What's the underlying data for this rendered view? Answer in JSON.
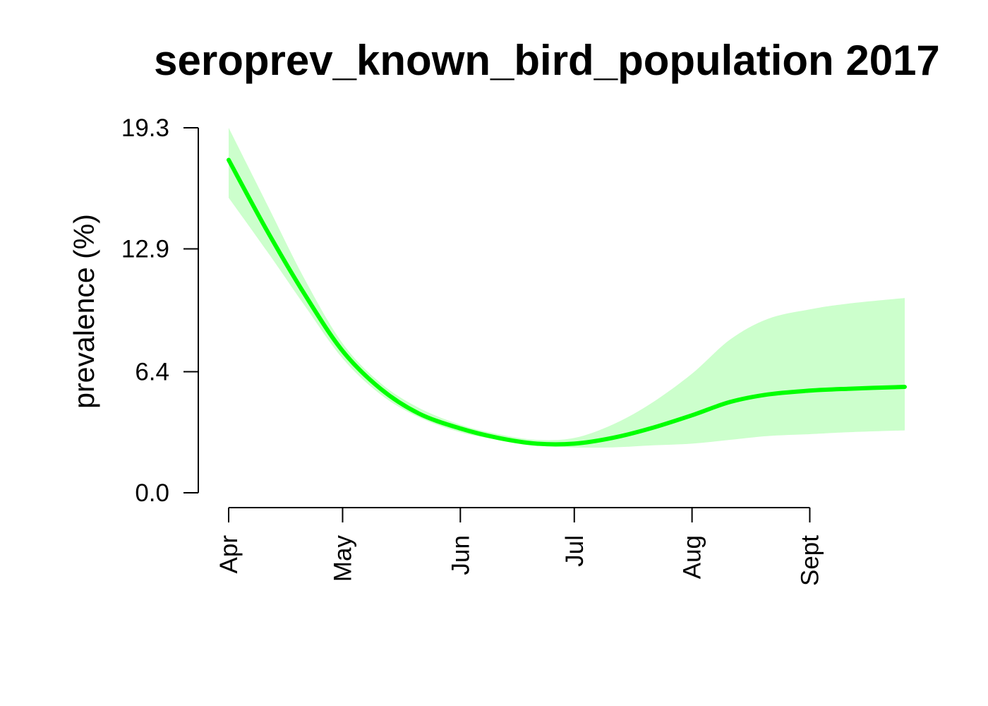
{
  "chart_data": {
    "type": "line",
    "title": "seroprev_known_bird_population 2017",
    "xlabel": "",
    "ylabel": "prevalence (%)",
    "ylim": [
      0.0,
      19.3
    ],
    "yticks": [
      "0.0",
      "6.4",
      "12.9",
      "19.3"
    ],
    "xticks": [
      "Apr",
      "May",
      "Jun",
      "Jul",
      "Aug",
      "Sept"
    ],
    "xtick_dates": [
      "2017-04-01",
      "2017-05-01",
      "2017-06-01",
      "2017-07-01",
      "2017-08-01",
      "2017-09-01"
    ],
    "xlim": [
      "2017-04-01",
      "2017-09-26"
    ],
    "grid": false,
    "colors": {
      "line": "#00ff00",
      "band": "#ccffcc"
    },
    "series": [
      {
        "x": [
          "2017-04-01",
          "2017-04-11",
          "2017-04-21",
          "2017-05-01",
          "2017-05-11",
          "2017-05-21",
          "2017-06-01",
          "2017-06-11",
          "2017-06-21",
          "2017-07-01",
          "2017-07-11",
          "2017-07-21",
          "2017-08-01",
          "2017-08-11",
          "2017-08-21",
          "2017-09-01",
          "2017-09-11",
          "2017-09-26"
        ],
        "values": [
          17.6,
          13.9,
          10.5,
          7.5,
          5.5,
          4.2,
          3.4,
          2.9,
          2.6,
          2.6,
          2.9,
          3.4,
          4.1,
          4.8,
          5.2,
          5.4,
          5.5,
          5.6
        ],
        "lower": [
          15.6,
          12.8,
          9.9,
          7.1,
          5.2,
          4.0,
          3.2,
          2.8,
          2.5,
          2.4,
          2.4,
          2.5,
          2.6,
          2.8,
          3.0,
          3.1,
          3.2,
          3.3
        ],
        "upper": [
          19.3,
          15.3,
          11.3,
          7.9,
          5.8,
          4.5,
          3.6,
          3.1,
          2.8,
          2.9,
          3.6,
          4.7,
          6.3,
          8.1,
          9.2,
          9.7,
          10.0,
          10.3
        ]
      }
    ]
  }
}
